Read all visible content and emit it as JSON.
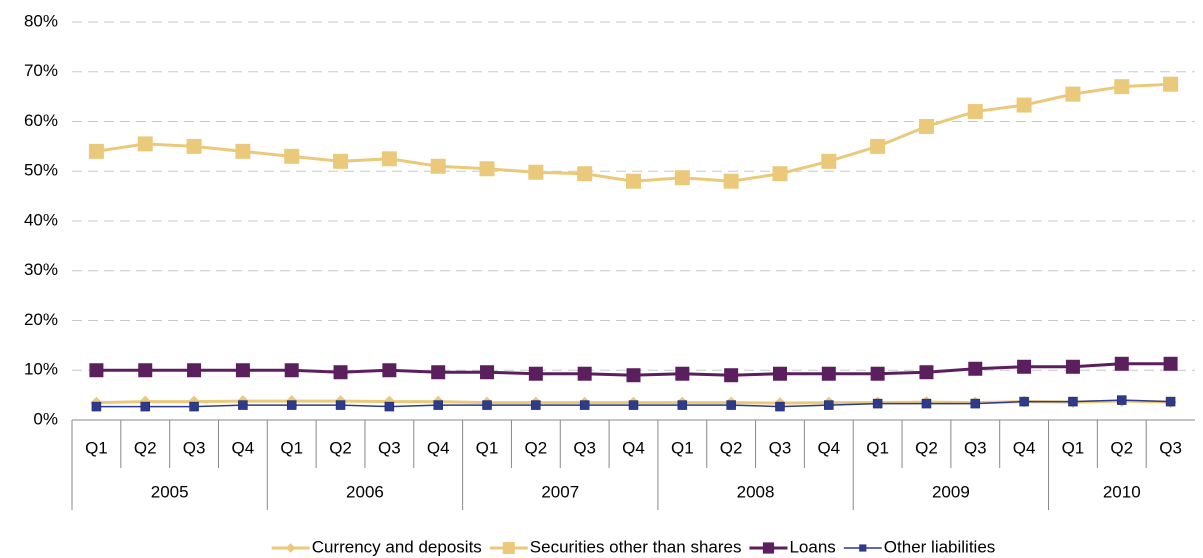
{
  "chart_data": {
    "type": "line",
    "groups": [
      {
        "name": "2005",
        "categories": [
          "Q1",
          "Q2",
          "Q3",
          "Q4"
        ]
      },
      {
        "name": "2006",
        "categories": [
          "Q1",
          "Q2",
          "Q3",
          "Q4"
        ]
      },
      {
        "name": "2007",
        "categories": [
          "Q1",
          "Q2",
          "Q3",
          "Q4"
        ]
      },
      {
        "name": "2008",
        "categories": [
          "Q1",
          "Q2",
          "Q3",
          "Q4"
        ]
      },
      {
        "name": "2009",
        "categories": [
          "Q1",
          "Q2",
          "Q3",
          "Q4"
        ]
      },
      {
        "name": "2010",
        "categories": [
          "Q1",
          "Q2",
          "Q3"
        ]
      }
    ],
    "series": [
      {
        "name": "Currency and deposits",
        "color": "#ebc97a",
        "marker": "diamond",
        "values": [
          3.5,
          3.7,
          3.7,
          3.8,
          3.8,
          3.8,
          3.7,
          3.7,
          3.5,
          3.5,
          3.5,
          3.5,
          3.5,
          3.5,
          3.4,
          3.5,
          3.5,
          3.6,
          3.5,
          3.7,
          3.6,
          3.8,
          3.6
        ]
      },
      {
        "name": "Securities other than shares",
        "color": "#ebc97a",
        "marker": "square",
        "values": [
          54,
          55.5,
          55,
          54,
          53,
          52,
          52.5,
          51,
          50.5,
          49.8,
          49.5,
          48,
          48.7,
          48,
          49.5,
          52,
          55,
          59,
          62,
          63.3,
          65.5,
          67,
          67.5
        ]
      },
      {
        "name": "Loans",
        "color": "#5b1f5e",
        "marker": "square",
        "values": [
          10,
          10,
          10,
          10,
          10,
          9.6,
          10,
          9.6,
          9.6,
          9.3,
          9.3,
          9,
          9.3,
          9,
          9.3,
          9.3,
          9.3,
          9.6,
          10.3,
          10.7,
          10.7,
          11.3,
          11.3
        ]
      },
      {
        "name": "Other liabilities",
        "color": "#2e3a8c",
        "marker": "square",
        "values": [
          2.7,
          2.7,
          2.7,
          3,
          3,
          3,
          2.7,
          3,
          3,
          3,
          3,
          3,
          3,
          3,
          2.7,
          3,
          3.3,
          3.3,
          3.3,
          3.7,
          3.7,
          4,
          3.7
        ]
      }
    ],
    "ylim": [
      0,
      80
    ],
    "yticks": [
      {
        "value": 0,
        "label": "0%"
      },
      {
        "value": 10,
        "label": "10%"
      },
      {
        "value": 20,
        "label": "20%"
      },
      {
        "value": 30,
        "label": "30%"
      },
      {
        "value": 40,
        "label": "40%"
      },
      {
        "value": 50,
        "label": "50%"
      },
      {
        "value": 60,
        "label": "60%"
      },
      {
        "value": 70,
        "label": "70%"
      },
      {
        "value": 80,
        "label": "80%"
      }
    ],
    "grid": true,
    "legend": "bottom"
  }
}
